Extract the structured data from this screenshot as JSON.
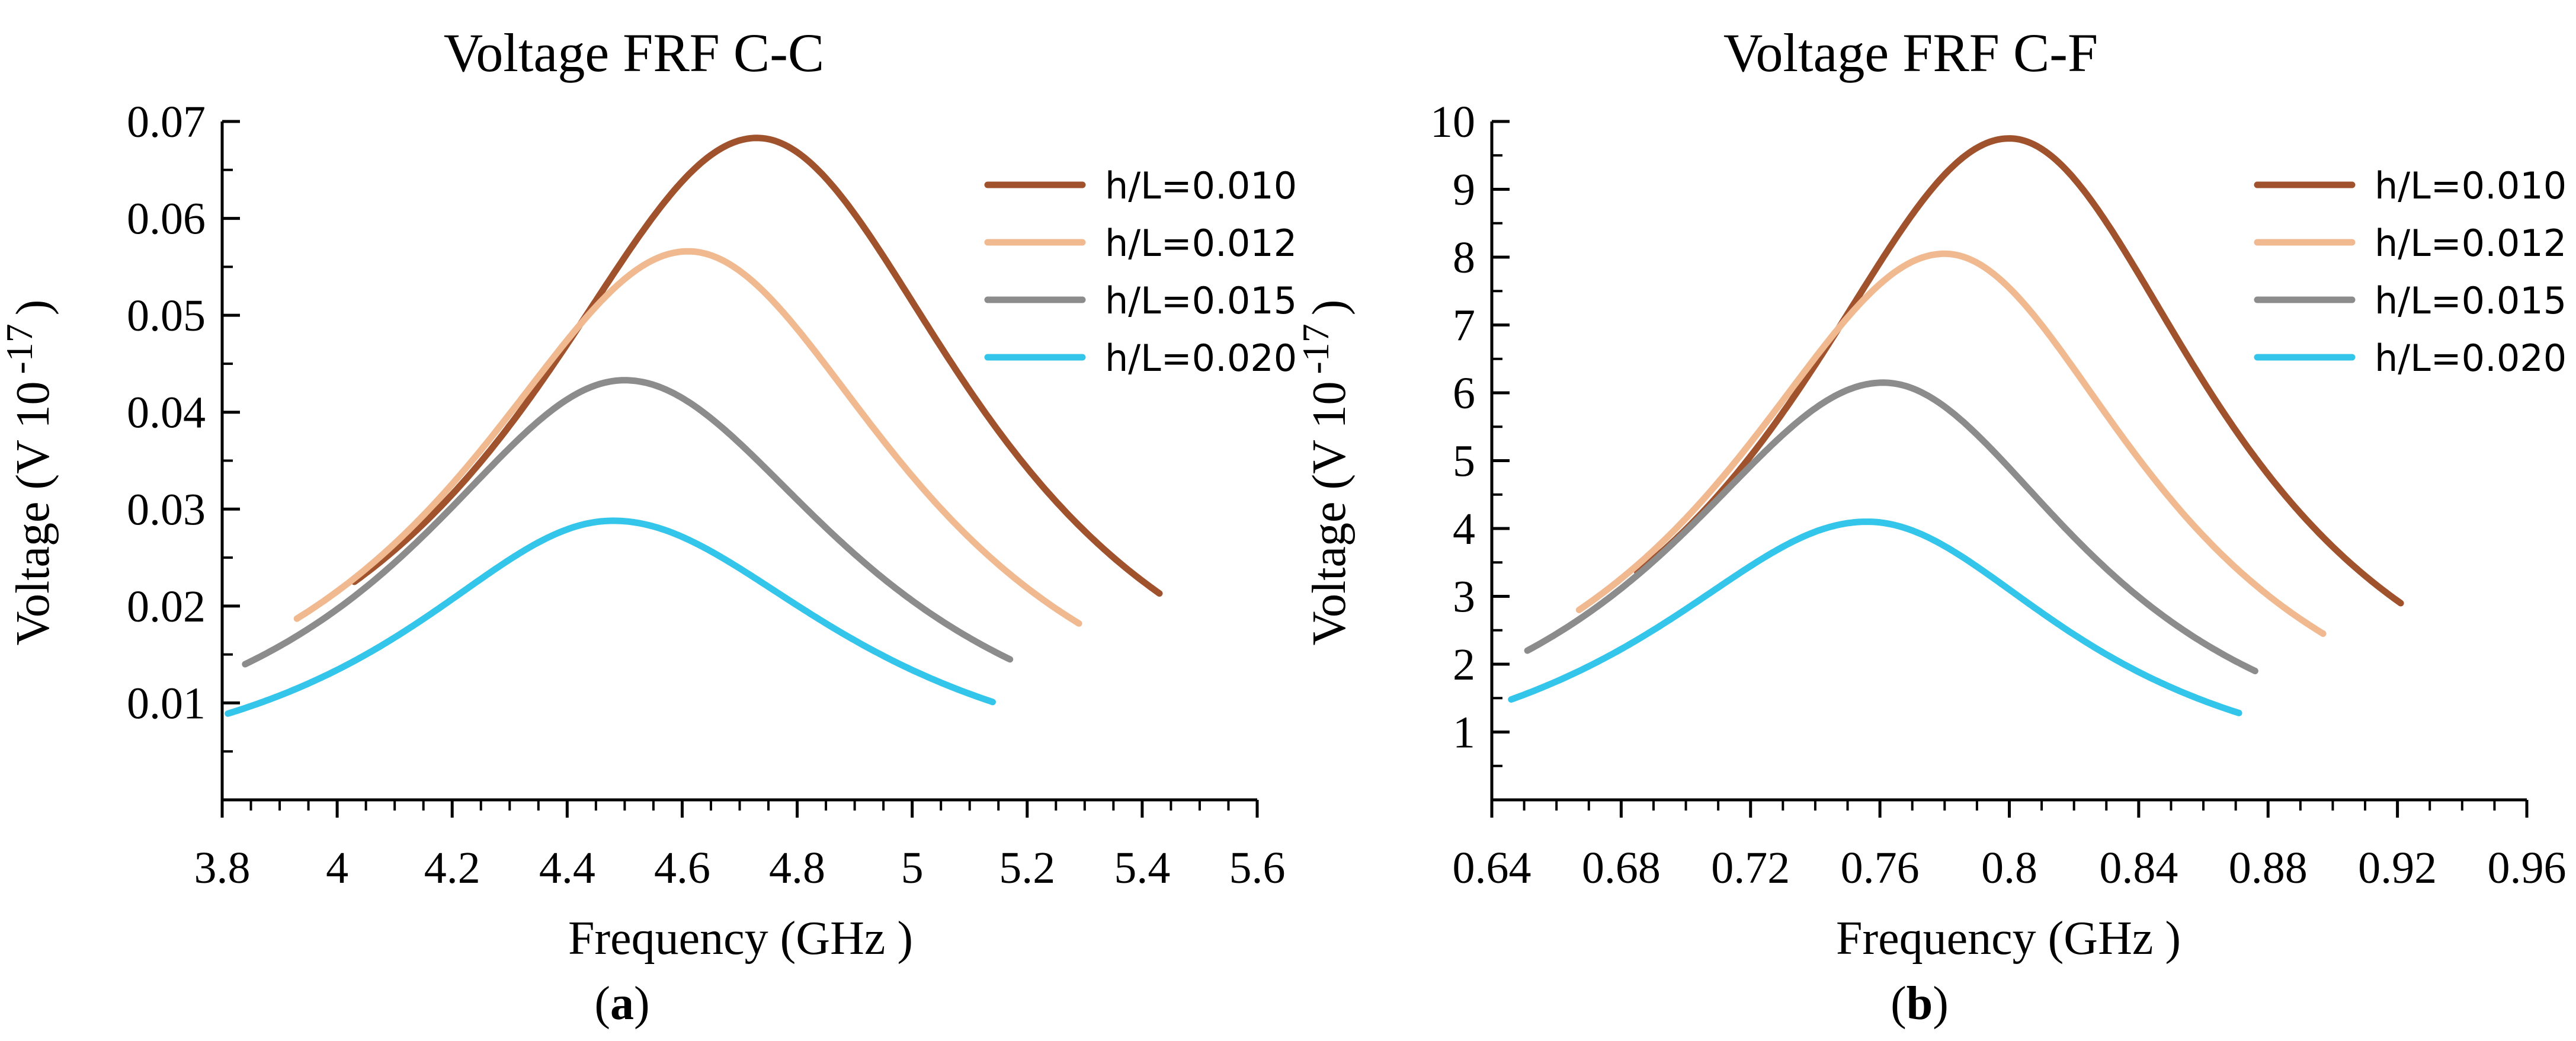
{
  "panels": [
    {
      "caption": "a",
      "chart_data": {
        "type": "line",
        "title": "Voltage  FRF  C-C",
        "xlabel": "Frequency (GHz )",
        "ylabel": "Voltage  (V 10",
        "ylabel_exp": "-17",
        "ylabel_close": ")",
        "xlim": [
          3.8,
          5.6
        ],
        "ylim": [
          0.0,
          0.07
        ],
        "xticks": [
          3.8,
          4.0,
          4.2,
          4.4,
          4.6,
          4.8,
          5.0,
          5.2,
          5.4,
          5.6
        ],
        "xtick_labels": [
          "3.8",
          "4",
          "4.2",
          "4.4",
          "4.6",
          "4.8",
          "5",
          "5.2",
          "5.4",
          "5.6"
        ],
        "yticks": [
          0.01,
          0.02,
          0.03,
          0.04,
          0.05,
          0.06,
          0.07
        ],
        "ytick_labels": [
          "0.01",
          "0.02",
          "0.03",
          "0.04",
          "0.05",
          "0.06",
          "0.07"
        ],
        "legend_position": "top-right",
        "series": [
          {
            "name": "h/L=0.010",
            "color": "#a0522d",
            "peak_x": 4.73,
            "peak_y": 0.0683,
            "x_start": 4.03,
            "y_start": 0.0225,
            "x_end": 5.43,
            "y_end": 0.0213
          },
          {
            "name": "h/L=0.012",
            "color": "#f0b990",
            "peak_x": 4.61,
            "peak_y": 0.0566,
            "x_start": 3.93,
            "y_start": 0.0187,
            "x_end": 5.29,
            "y_end": 0.0182
          },
          {
            "name": "h/L=0.015",
            "color": "#8c8c8c",
            "peak_x": 4.5,
            "peak_y": 0.0433,
            "x_start": 3.84,
            "y_start": 0.014,
            "x_end": 5.17,
            "y_end": 0.0145
          },
          {
            "name": "h/L=0.020",
            "color": "#33c5ea",
            "peak_x": 4.48,
            "peak_y": 0.0288,
            "x_start": 3.81,
            "y_start": 0.0089,
            "x_end": 5.14,
            "y_end": 0.0101
          }
        ]
      }
    },
    {
      "caption": "b",
      "chart_data": {
        "type": "line",
        "title": "Voltage  FRF  C-F",
        "xlabel": "Frequency (GHz )",
        "ylabel": "Voltage  (V 10",
        "ylabel_exp": "-17",
        "ylabel_close": ")",
        "xlim": [
          0.64,
          0.96
        ],
        "ylim": [
          0,
          10
        ],
        "xticks": [
          0.64,
          0.68,
          0.72,
          0.76,
          0.8,
          0.84,
          0.88,
          0.92,
          0.96
        ],
        "xtick_labels": [
          "0.64",
          "0.68",
          "0.72",
          "0.76",
          "0.8",
          "0.84",
          "0.88",
          "0.92",
          "0.96"
        ],
        "yticks": [
          1,
          2,
          3,
          4,
          5,
          6,
          7,
          8,
          9,
          10
        ],
        "ytick_labels": [
          "1",
          "2",
          "3",
          "4",
          "5",
          "6",
          "7",
          "8",
          "9",
          "10"
        ],
        "legend_position": "top-right",
        "series": [
          {
            "name": "h/L=0.010",
            "color": "#a0522d",
            "peak_x": 0.8,
            "peak_y": 9.75,
            "x_start": 0.685,
            "y_start": 3.35,
            "x_end": 0.921,
            "y_end": 2.9
          },
          {
            "name": "h/L=0.012",
            "color": "#f0b990",
            "peak_x": 0.78,
            "peak_y": 8.05,
            "x_start": 0.667,
            "y_start": 2.8,
            "x_end": 0.897,
            "y_end": 2.45
          },
          {
            "name": "h/L=0.015",
            "color": "#8c8c8c",
            "peak_x": 0.761,
            "peak_y": 6.15,
            "x_start": 0.651,
            "y_start": 2.2,
            "x_end": 0.876,
            "y_end": 1.9
          },
          {
            "name": "h/L=0.020",
            "color": "#33c5ea",
            "peak_x": 0.756,
            "peak_y": 4.1,
            "x_start": 0.646,
            "y_start": 1.48,
            "x_end": 0.871,
            "y_end": 1.28
          }
        ]
      }
    }
  ]
}
